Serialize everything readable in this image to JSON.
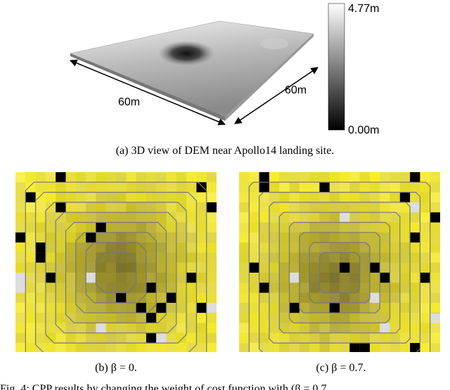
{
  "figure": {
    "panel_a": {
      "colorbar": {
        "max_label": "4.77m",
        "min_label": "0.00m"
      },
      "dimensions": [
        "60m",
        "60m"
      ],
      "caption": "(a) 3D view of DEM near Apollo14 landing site."
    },
    "panel_b": {
      "caption": "(b) β = 0."
    },
    "panel_c": {
      "caption": "(c) β = 0.7."
    },
    "caption": "Fig. 4:  CPP results by changing the weight of cost function with (β = 0.7"
  }
}
